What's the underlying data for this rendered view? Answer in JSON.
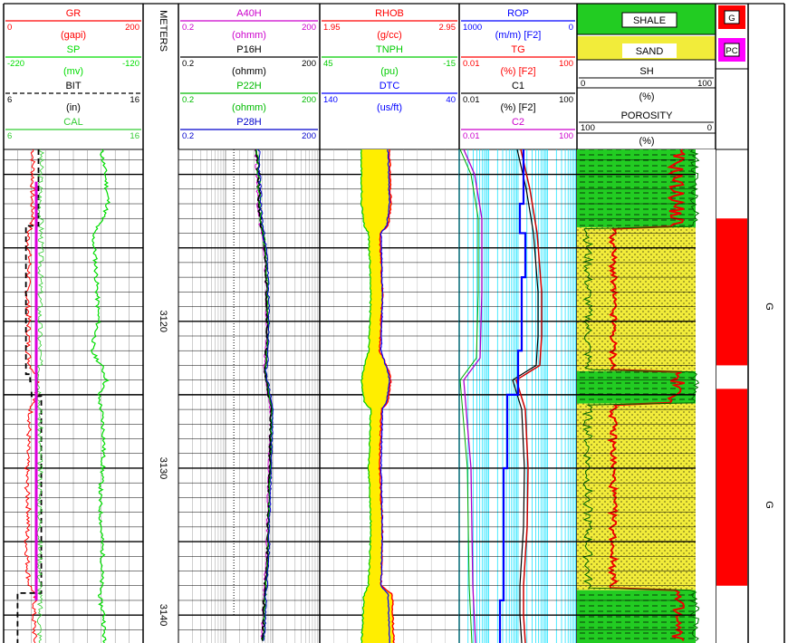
{
  "depth": {
    "unit_label": "METERS",
    "top": 3108.3,
    "bottom": 3141.9,
    "labels": [
      {
        "text": "3120",
        "depth": 3120
      },
      {
        "text": "3130",
        "depth": 3130
      },
      {
        "text": "3140",
        "depth": 3140
      }
    ]
  },
  "tracks": {
    "track1": {
      "curves": [
        {
          "name": "GR",
          "unit": "(gapi)",
          "min": "0",
          "max": "200",
          "color": "#ff0000",
          "dash": "none"
        },
        {
          "name": "SP",
          "unit": "(mv)",
          "min": "-220",
          "max": "-120",
          "color": "#00dd00",
          "dash": "none"
        },
        {
          "name": "BIT",
          "unit": "(in)",
          "min": "6",
          "max": "16",
          "color": "#000000",
          "dash": "dashed"
        },
        {
          "name": "CAL",
          "unit": "",
          "min": "6",
          "max": "16",
          "color": "#33cc33",
          "dash": "none"
        }
      ]
    },
    "track2": {
      "curves": [
        {
          "name": "A40H",
          "unit": "(ohmm)",
          "min": "0.2",
          "max": "200",
          "color": "#cc00cc"
        },
        {
          "name": "P16H",
          "unit": "(ohmm)",
          "min": "0.2",
          "max": "200",
          "color": "#000000"
        },
        {
          "name": "P22H",
          "unit": "(ohmm)",
          "min": "0.2",
          "max": "200",
          "color": "#00bb00"
        },
        {
          "name": "P28H",
          "unit": "",
          "min": "0.2",
          "max": "200",
          "color": "#0000cc"
        }
      ]
    },
    "track3": {
      "curves": [
        {
          "name": "RHOB",
          "unit": "(g/cc)",
          "min": "1.95",
          "max": "2.95",
          "color": "#ff0000"
        },
        {
          "name": "TNPH",
          "unit": "(pu)",
          "min": "45",
          "max": "-15",
          "color": "#00cc00"
        },
        {
          "name": "DTC",
          "unit": "(us/ft)",
          "min": "140",
          "max": "40",
          "color": "#0000ff"
        }
      ]
    },
    "track4": {
      "curves": [
        {
          "name": "ROP",
          "unit": "(m/m) [F2]",
          "min": "1000",
          "max": "0",
          "color": "#0000ff"
        },
        {
          "name": "TG",
          "unit": "(%) [F2]",
          "min": "0.01",
          "max": "100",
          "color": "#ff0000"
        },
        {
          "name": "C1",
          "unit": "(%) [F2]",
          "min": "0.01",
          "max": "100",
          "color": "#000000"
        },
        {
          "name": "C2",
          "unit": "",
          "min": "0.01",
          "max": "100",
          "color": "#cc00cc"
        }
      ]
    },
    "track5": {
      "legend_shale": "SHALE",
      "legend_sand": "SAND",
      "sh_name": "SH",
      "sh_unit": "(%)",
      "sh_min": "0",
      "sh_max": "100",
      "por_name": "POROSITY",
      "por_unit": "(%)",
      "por_min": "100",
      "por_max": "0",
      "shale_color": "#22cc22",
      "sand_color": "#f2ec3a"
    },
    "track6": {
      "legend": [
        {
          "code": "G",
          "color": "#ff0000"
        },
        {
          "code": "PC",
          "color": "#ff00ff"
        }
      ]
    },
    "track7": {
      "zone_labels": [
        {
          "text": "G",
          "depth": 3119
        },
        {
          "text": "G",
          "depth": 3132.5
        }
      ]
    }
  },
  "chart_data": {
    "type": "well-log",
    "depth_unit": "METERS",
    "depth_range": [
      3108.3,
      3141.9
    ],
    "track_gas_zones": [
      {
        "from": 3113.0,
        "to": 3123.0,
        "code": "G"
      },
      {
        "from": 3124.6,
        "to": 3138.0,
        "code": "G"
      }
    ],
    "lithology": [
      {
        "from": 3108.3,
        "to": 3113.6,
        "lith": "SHALE"
      },
      {
        "from": 3113.6,
        "to": 3123.4,
        "lith": "SAND"
      },
      {
        "from": 3123.4,
        "to": 3125.6,
        "lith": "SHALE"
      },
      {
        "from": 3125.6,
        "to": 3138.3,
        "lith": "SAND"
      },
      {
        "from": 3138.3,
        "to": 3141.9,
        "lith": "SHALE"
      }
    ],
    "curves": {
      "GR": {
        "depth": [
          3108.3,
          3110,
          3112,
          3113,
          3113.6,
          3114,
          3116,
          3118,
          3120,
          3122,
          3123,
          3123.5,
          3124,
          3125,
          3125.6,
          3127,
          3129,
          3131,
          3133,
          3135,
          3137,
          3138,
          3138.3,
          3139,
          3140,
          3141,
          3141.9
        ],
        "value": [
          42,
          42,
          41,
          43,
          39,
          35,
          37,
          34,
          36,
          35,
          38,
          45,
          50,
          48,
          40,
          37,
          34,
          33,
          36,
          33,
          35,
          37,
          42,
          45,
          43,
          44,
          45
        ]
      },
      "SP": {
        "depth": [
          3108.3,
          3110,
          3112,
          3113,
          3114,
          3116,
          3118,
          3120,
          3122,
          3123,
          3124,
          3125,
          3126,
          3128,
          3130,
          3132,
          3134,
          3136,
          3138,
          3139,
          3140,
          3141.9
        ],
        "value": [
          -150,
          -147,
          -145,
          -149,
          -156,
          -154,
          -153,
          -152,
          -157,
          -150,
          -146,
          -152,
          -150,
          -148,
          -149,
          -151,
          -150,
          -149,
          -150,
          -151,
          -148,
          -148
        ]
      },
      "BIT": {
        "depth": [
          3108.3,
          3113.5,
          3113.5,
          3123.6,
          3123.6,
          3124.1,
          3124.1,
          3124.8,
          3124.8,
          3125.1,
          3125.1,
          3138.5,
          3138.5,
          3141.9
        ],
        "value": [
          8.5,
          8.5,
          7.6,
          7.6,
          7.9,
          7.9,
          8.4,
          8.4,
          8.0,
          8.0,
          8.7,
          8.7,
          7.0,
          7.0
        ]
      },
      "CAL": {
        "depth": [
          3108.3,
          3112,
          3113.5,
          3120,
          3125,
          3130,
          3138.5,
          3141.9
        ],
        "value": [
          8.7,
          8.6,
          8.7,
          8.6,
          8.6,
          8.6,
          8.6,
          8.6
        ]
      },
      "RHOB": {
        "depth": [
          3108.3,
          3112,
          3113.5,
          3114,
          3118,
          3122,
          3123.2,
          3124,
          3125.5,
          3126,
          3130,
          3134,
          3138,
          3138.6,
          3141.9
        ],
        "value": [
          2.45,
          2.46,
          2.44,
          2.38,
          2.4,
          2.38,
          2.44,
          2.46,
          2.44,
          2.39,
          2.38,
          2.4,
          2.39,
          2.47,
          2.48
        ]
      },
      "TNPH": {
        "depth": [
          3108.3,
          3112,
          3113.5,
          3114,
          3118,
          3122,
          3123.2,
          3124,
          3125.5,
          3126,
          3130,
          3134,
          3138,
          3138.6,
          3141.9
        ],
        "value": [
          27,
          27,
          26,
          24,
          23,
          24,
          26,
          27,
          26,
          23,
          24,
          23,
          24,
          26,
          27
        ]
      },
      "DTC": {
        "depth": [
          3108.3,
          3112,
          3113.5,
          3114,
          3118,
          3122,
          3123.2,
          3124,
          3125.5,
          3126,
          3130,
          3134,
          3138,
          3138.6,
          3141.9
        ],
        "value": [
          91,
          90,
          92,
          96,
          95,
          96,
          92,
          90,
          92,
          95,
          96,
          95,
          96,
          91,
          90
        ]
      }
    }
  }
}
